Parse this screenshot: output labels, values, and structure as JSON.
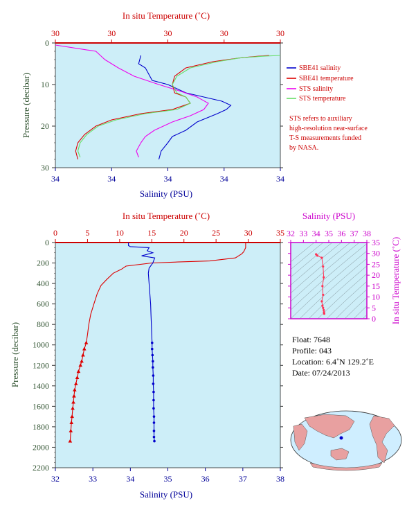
{
  "chart_data": [
    {
      "type": "line",
      "id": "upper",
      "title_top": "In situ Temperature (˚C)",
      "xlabel": "Salinity (PSU)",
      "ylabel": "Pressure (decibar)",
      "top_ticks": [
        "30",
        "30",
        "30",
        "30",
        "30"
      ],
      "bottom_ticks": [
        "34",
        "34",
        "34",
        "34",
        "34"
      ],
      "y_ticks": [
        "0",
        "10",
        "20",
        "30"
      ],
      "ylim": [
        0,
        30
      ],
      "y_inverted": true,
      "legend": [
        {
          "name": "SBE41 salinity",
          "color": "#0000cc"
        },
        {
          "name": "SBE41 temperature",
          "color": "#dd0000"
        },
        {
          "name": "STS salinity",
          "color": "#ee00ee"
        },
        {
          "name": "STS temperature",
          "color": "#66dd66"
        }
      ],
      "note": [
        "STS refers to auxiliary",
        "high-resolution near-surface",
        "T-S measurements funded",
        "by NASA."
      ],
      "series": [
        {
          "name": "SBE41 salinity",
          "color": "#0000cc",
          "x": [
            0.38,
            0.37,
            0.4,
            0.41,
            0.43,
            0.5,
            0.58,
            0.66,
            0.74,
            0.78,
            0.76,
            0.72,
            0.63,
            0.58,
            0.52,
            0.5,
            0.47,
            0.46
          ],
          "y": [
            3,
            5,
            6,
            7,
            9,
            10,
            12,
            13,
            14,
            15,
            16,
            17,
            19,
            21,
            22.5,
            24,
            26,
            28
          ]
        },
        {
          "name": "SBE41 temperature",
          "color": "#dd0000",
          "x": [
            0.95,
            0.9,
            0.82,
            0.7,
            0.58,
            0.53,
            0.52,
            0.53,
            0.58,
            0.6,
            0.52,
            0.38,
            0.25,
            0.18,
            0.13,
            0.1,
            0.09,
            0.1
          ],
          "y": [
            3,
            3.2,
            3.6,
            4.5,
            6,
            8,
            10,
            12,
            13,
            14.5,
            16,
            17,
            18.5,
            20,
            22,
            24,
            26,
            28
          ]
        },
        {
          "name": "STS salinity",
          "color": "#ee00ee",
          "x": [
            0.0,
            0.18,
            0.2,
            0.22,
            0.28,
            0.35,
            0.46,
            0.55,
            0.63,
            0.68,
            0.66,
            0.6,
            0.52,
            0.44,
            0.4,
            0.38,
            0.36,
            0.37
          ],
          "y": [
            0.5,
            2,
            3,
            4,
            6,
            8,
            10,
            11.5,
            13,
            14.5,
            16,
            17.5,
            19,
            21,
            22.5,
            24,
            26,
            27.5
          ]
        },
        {
          "name": "STS temperature",
          "color": "#66dd66",
          "x": [
            1.0,
            0.92,
            0.82,
            0.72,
            0.6,
            0.54,
            0.52,
            0.54,
            0.58,
            0.6,
            0.54,
            0.4,
            0.27,
            0.19,
            0.14,
            0.11,
            0.1,
            0.11
          ],
          "y": [
            3,
            3.2,
            3.6,
            4.5,
            6,
            8,
            10,
            12,
            13,
            14.5,
            16,
            17,
            18.5,
            20,
            22,
            24,
            26,
            27.5
          ]
        }
      ]
    },
    {
      "type": "line",
      "id": "lower",
      "title_top": "In situ Temperature (˚C)",
      "xlabel": "Salinity (PSU)",
      "ylabel": "Pressure (decibar)",
      "top_ticks": [
        "0",
        "5",
        "10",
        "15",
        "20",
        "25",
        "30",
        "35"
      ],
      "bottom_ticks": [
        "32",
        "33",
        "34",
        "35",
        "36",
        "37",
        "38"
      ],
      "y_ticks": [
        "0",
        "200",
        "400",
        "600",
        "800",
        "1000",
        "1200",
        "1400",
        "1600",
        "1800",
        "2000",
        "2200"
      ],
      "xlim": [
        32,
        38
      ],
      "tlim": [
        0,
        35
      ],
      "ylim": [
        0,
        2200
      ],
      "y_inverted": true,
      "series": [
        {
          "name": "Temperature",
          "color": "#dd0000",
          "axis": "top",
          "x": [
            29.6,
            29.6,
            29.3,
            29.0,
            28.0,
            24.0,
            19.0,
            15.0,
            11.0,
            10.3,
            9.0,
            8.0,
            7.1,
            6.5,
            6.0,
            5.5,
            5.2,
            5.0,
            4.8,
            4.5,
            4.3,
            4.1,
            3.9,
            3.6,
            3.4,
            3.2,
            3.0,
            2.9,
            2.8,
            2.7,
            2.6,
            2.5,
            2.4,
            2.3
          ],
          "y": [
            0,
            50,
            90,
            110,
            150,
            180,
            190,
            200,
            230,
            260,
            300,
            360,
            420,
            500,
            600,
            700,
            800,
            900,
            980,
            1040,
            1100,
            1160,
            1200,
            1260,
            1320,
            1380,
            1440,
            1500,
            1560,
            1620,
            1700,
            1760,
            1840,
            1940
          ]
        },
        {
          "name": "Salinity",
          "color": "#0000cc",
          "axis": "bottom",
          "x": [
            33.95,
            33.95,
            34.0,
            34.5,
            34.45,
            34.6,
            34.3,
            34.65,
            34.6,
            34.5,
            34.48,
            34.5,
            34.52,
            34.54,
            34.55,
            34.56,
            34.57,
            34.58,
            34.58,
            34.59,
            34.6,
            34.6,
            34.61,
            34.61,
            34.62,
            34.62,
            34.62,
            34.63,
            34.63,
            34.63,
            34.63,
            34.64
          ],
          "y": [
            0,
            30,
            40,
            50,
            80,
            100,
            130,
            150,
            200,
            250,
            300,
            400,
            500,
            600,
            700,
            800,
            900,
            980,
            1040,
            1100,
            1160,
            1220,
            1300,
            1380,
            1460,
            1540,
            1620,
            1700,
            1760,
            1840,
            1900,
            1940
          ]
        }
      ]
    },
    {
      "type": "scatter",
      "id": "ts",
      "title_top": "Salinity (PSU)",
      "ylabel": "In situ Temperature (˚C)",
      "top_ticks": [
        "32",
        "33",
        "34",
        "35",
        "36",
        "37",
        "38"
      ],
      "right_ticks": [
        "0",
        "5",
        "10",
        "15",
        "20",
        "25",
        "30",
        "35"
      ],
      "xlim": [
        32,
        38
      ],
      "ylim": [
        0,
        35
      ],
      "series": [
        {
          "name": "T-S",
          "color": "#ff3355",
          "x": [
            34.0,
            34.1,
            34.45,
            34.55,
            34.6,
            34.5,
            34.55,
            34.45,
            34.5,
            34.55,
            34.6,
            34.62,
            34.64
          ],
          "y": [
            29.6,
            29.0,
            28.0,
            24.0,
            19.0,
            15.0,
            11.0,
            8.0,
            6.0,
            5.0,
            4.0,
            3.0,
            2.3
          ]
        }
      ]
    }
  ],
  "info": {
    "float": "Float:  7648",
    "profile": "Profile:  043",
    "location": "Location:  6.4˚N  129.2˚E",
    "date": "Date:  07/24/2013"
  },
  "map": {
    "ocean_color": "#cfeeff",
    "land_color": "#e8a0a0",
    "float_marker_color": "#0000cc"
  }
}
